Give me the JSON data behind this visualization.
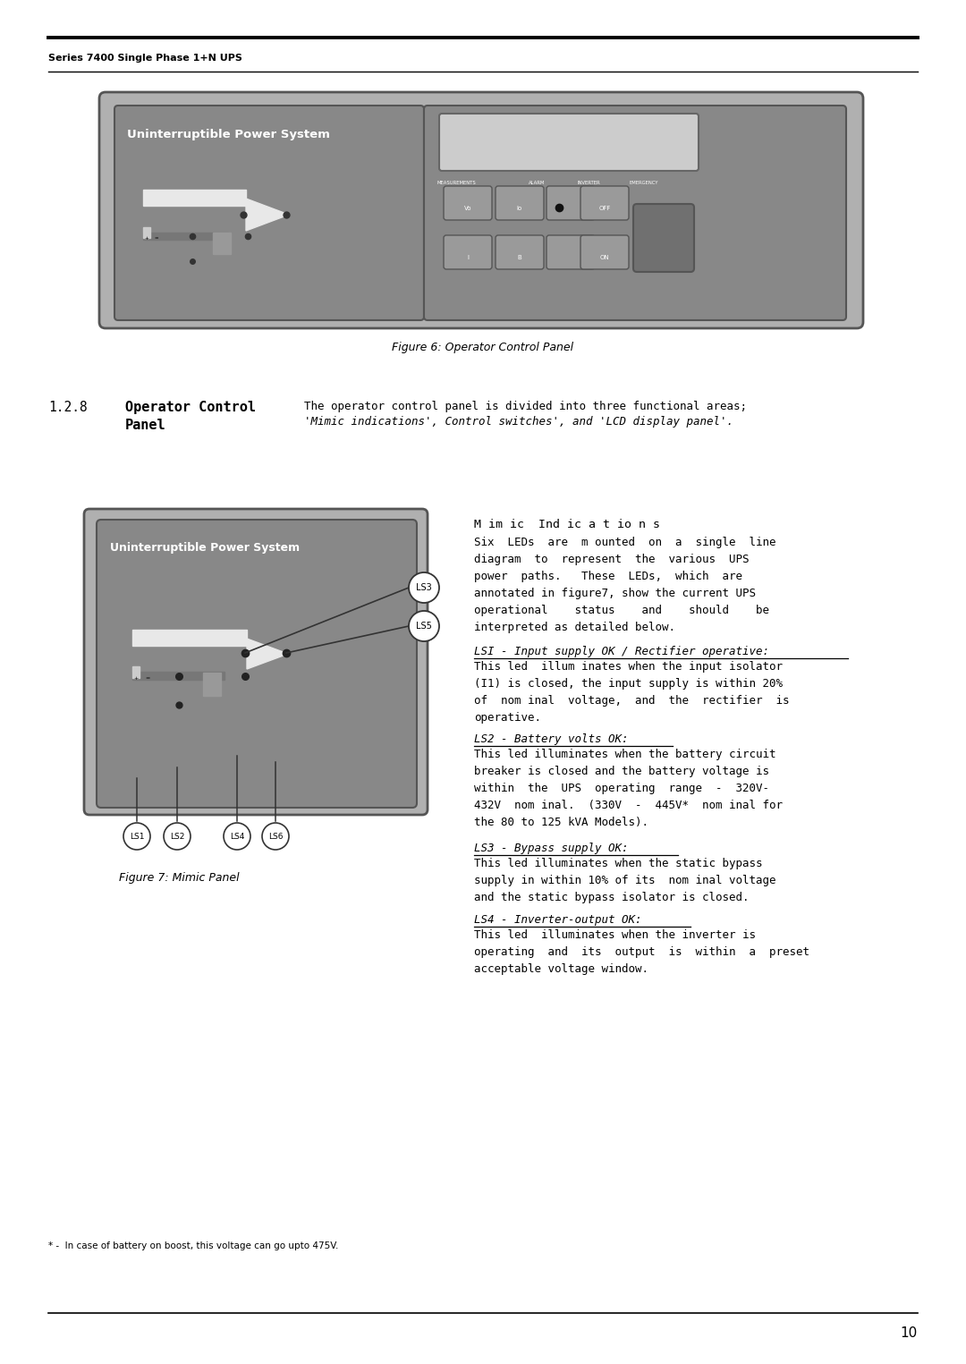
{
  "page_title": "Series 7400 Single Phase 1+N UPS",
  "page_num": "10",
  "bg_color": "#ffffff",
  "fig6_caption": "Figure 6: Operator Control Panel",
  "fig7_caption": "Figure 7: Mimic Panel",
  "section_num": "1.2.8",
  "footnote": "* -  In case of battery on boost, this voltage can go upto 475V.",
  "panel_outer_bg": "#aaaaaa",
  "panel_inner_bg": "#888888",
  "panel_ctrl_bg": "#888888",
  "lcd_bg": "#cccccc",
  "btn_bg": "#999999",
  "emerg_btn_bg": "#666666"
}
